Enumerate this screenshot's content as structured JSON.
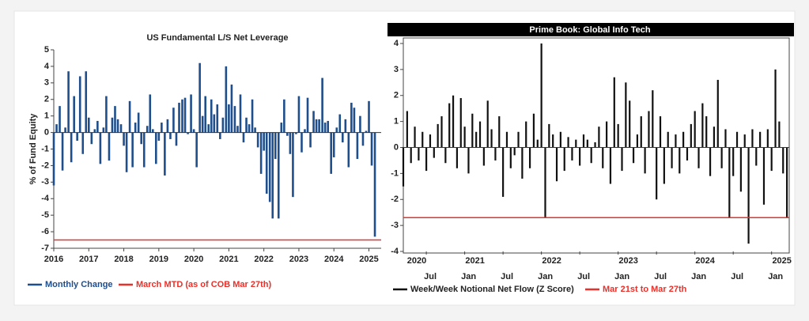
{
  "chart_data": [
    {
      "type": "bar",
      "title": "US Fundamental L/S Net Leverage",
      "ylabel": "% of Fund Equity",
      "x": [
        2016.0,
        2016.08,
        2016.17,
        2016.25,
        2016.33,
        2016.42,
        2016.5,
        2016.58,
        2016.67,
        2016.75,
        2016.83,
        2016.92,
        2017.0,
        2017.08,
        2017.17,
        2017.25,
        2017.33,
        2017.42,
        2017.5,
        2017.58,
        2017.67,
        2017.75,
        2017.83,
        2017.92,
        2018.0,
        2018.08,
        2018.17,
        2018.25,
        2018.33,
        2018.42,
        2018.5,
        2018.58,
        2018.67,
        2018.75,
        2018.83,
        2018.92,
        2019.0,
        2019.08,
        2019.17,
        2019.25,
        2019.33,
        2019.42,
        2019.5,
        2019.58,
        2019.67,
        2019.75,
        2019.83,
        2019.92,
        2020.0,
        2020.08,
        2020.17,
        2020.25,
        2020.33,
        2020.42,
        2020.5,
        2020.58,
        2020.67,
        2020.75,
        2020.83,
        2020.92,
        2021.0,
        2021.08,
        2021.17,
        2021.25,
        2021.33,
        2021.42,
        2021.5,
        2021.58,
        2021.67,
        2021.75,
        2021.83,
        2021.92,
        2022.0,
        2022.08,
        2022.17,
        2022.25,
        2022.33,
        2022.42,
        2022.5,
        2022.58,
        2022.67,
        2022.75,
        2022.83,
        2022.92,
        2023.0,
        2023.08,
        2023.17,
        2023.25,
        2023.33,
        2023.42,
        2023.5,
        2023.58,
        2023.67,
        2023.75,
        2023.83,
        2023.92,
        2024.0,
        2024.08,
        2024.17,
        2024.25,
        2024.33,
        2024.42,
        2024.5,
        2024.58,
        2024.67,
        2024.75,
        2024.83,
        2024.92,
        2025.0,
        2025.08,
        2025.17
      ],
      "series": [
        {
          "name": "Monthly Change",
          "color": "#1f4e8c",
          "values": [
            -3.2,
            0.5,
            1.6,
            -2.3,
            0.3,
            3.7,
            -1.8,
            2.2,
            -0.5,
            3.4,
            -1.3,
            3.7,
            0.9,
            -0.7,
            0.2,
            0.7,
            -1.9,
            0.3,
            2.2,
            -1.7,
            0.9,
            1.6,
            0.8,
            0.5,
            -0.8,
            -2.4,
            1.9,
            -2.1,
            0.6,
            1.2,
            -0.7,
            -2.1,
            0.4,
            2.3,
            0.2,
            -1.9,
            -0.5,
            0.6,
            -2.6,
            0.8,
            -0.4,
            1.5,
            -0.8,
            1.8,
            2.0,
            2.1,
            -0.1,
            2.3,
            0.2,
            -2.1,
            4.2,
            1.0,
            2.2,
            0.5,
            2.0,
            1.1,
            1.7,
            -0.4,
            0.9,
            4.0,
            1.7,
            2.9,
            1.6,
            0.4,
            2.3,
            -0.6,
            0.9,
            0.5,
            2.0,
            0.3,
            -0.9,
            -2.5,
            -1.1,
            -3.7,
            -4.2,
            -5.2,
            -1.6,
            -5.2,
            0.6,
            2.0,
            -0.2,
            -1.3,
            -3.9,
            -0.1,
            2.2,
            -1.2,
            0.2,
            2.1,
            -0.9,
            1.3,
            0.8,
            0.8,
            3.3,
            0.6,
            0.7,
            -2.5,
            -1.5,
            0.3,
            1.1,
            -0.6,
            0.8,
            -2.1,
            1.8,
            1.5,
            -1.6,
            1.0,
            -0.8,
            0.1,
            1.9,
            -2.0,
            -6.3
          ]
        }
      ],
      "reference_line": {
        "name": "March MTD (as of COB Mar 27th)",
        "color": "#e8312a",
        "value": -6.5
      },
      "xlim": [
        2016,
        2025.35
      ],
      "xticks": [
        2016,
        2017,
        2018,
        2019,
        2020,
        2021,
        2022,
        2023,
        2024,
        2025
      ],
      "ylim": [
        -7,
        5
      ],
      "yticks": [
        -7,
        -6,
        -5,
        -4,
        -3,
        -2,
        -1,
        0,
        1,
        2,
        3,
        4,
        5
      ],
      "legend": "bottom"
    },
    {
      "type": "bar",
      "title": "Prime Book: Global Info Tech",
      "x": [
        2020.2,
        2020.25,
        2020.3,
        2020.35,
        2020.4,
        2020.45,
        2020.5,
        2020.55,
        2020.6,
        2020.65,
        2020.7,
        2020.75,
        2020.8,
        2020.85,
        2020.9,
        2020.95,
        2021.0,
        2021.05,
        2021.1,
        2021.15,
        2021.2,
        2021.25,
        2021.3,
        2021.35,
        2021.4,
        2021.45,
        2021.5,
        2021.55,
        2021.6,
        2021.65,
        2021.7,
        2021.75,
        2021.8,
        2021.85,
        2021.9,
        2021.95,
        2022.0,
        2022.05,
        2022.1,
        2022.15,
        2022.2,
        2022.25,
        2022.3,
        2022.35,
        2022.4,
        2022.45,
        2022.5,
        2022.55,
        2022.6,
        2022.65,
        2022.7,
        2022.75,
        2022.8,
        2022.85,
        2022.9,
        2022.95,
        2023.0,
        2023.05,
        2023.1,
        2023.15,
        2023.2,
        2023.25,
        2023.3,
        2023.35,
        2023.4,
        2023.45,
        2023.5,
        2023.55,
        2023.6,
        2023.65,
        2023.7,
        2023.75,
        2023.8,
        2023.85,
        2023.9,
        2023.95,
        2024.0,
        2024.05,
        2024.1,
        2024.15,
        2024.2,
        2024.25,
        2024.3,
        2024.35,
        2024.4,
        2024.45,
        2024.5,
        2024.55,
        2024.6,
        2024.65,
        2024.7,
        2024.75,
        2024.8,
        2024.85,
        2024.9,
        2024.95,
        2025.0,
        2025.05,
        2025.1,
        2025.15,
        2025.2
      ],
      "series": [
        {
          "name": "Week/Week Notional Net Flow (Z Score)",
          "color": "#111111",
          "values": [
            -1.5,
            1.4,
            -0.6,
            0.8,
            -0.5,
            0.6,
            -0.9,
            0.5,
            -0.4,
            0.9,
            1.2,
            -0.6,
            1.7,
            2.0,
            -0.8,
            1.9,
            0.8,
            -1.0,
            1.3,
            0.6,
            1.0,
            -0.7,
            1.8,
            0.7,
            -0.5,
            1.2,
            -1.9,
            0.6,
            -0.8,
            -0.3,
            0.6,
            -1.2,
            1.0,
            -0.8,
            1.3,
            0.3,
            4.0,
            -2.7,
            0.9,
            0.5,
            -1.3,
            0.6,
            -0.9,
            0.4,
            -0.5,
            0.3,
            -0.7,
            0.5,
            0.3,
            -0.6,
            0.2,
            0.8,
            -0.8,
            1.0,
            -1.4,
            2.7,
            0.9,
            -0.9,
            2.5,
            1.8,
            -0.6,
            0.5,
            1.2,
            -1.0,
            1.4,
            2.2,
            -2.0,
            1.2,
            -1.4,
            0.6,
            -0.8,
            0.5,
            -1.0,
            0.6,
            -0.5,
            0.9,
            1.4,
            -0.8,
            1.7,
            1.2,
            -1.1,
            0.8,
            2.6,
            -0.8,
            0.7,
            -2.7,
            -1.1,
            0.6,
            -1.7,
            0.5,
            -3.7,
            0.7,
            -0.7,
            0.6,
            -2.2,
            0.7,
            -0.9,
            3.0,
            1.0,
            -1.0,
            -2.7
          ]
        }
      ],
      "reference_line": {
        "name": "Mar 21st to Mar 27th",
        "color": "#e8312a",
        "value": -2.7
      },
      "xlim": [
        2020.2,
        2025.23
      ],
      "xticks": [
        {
          "value": 2020.5,
          "label": "Jul"
        },
        {
          "value": 2021,
          "label": "Jan"
        },
        {
          "value": 2021.5,
          "label": "Jul"
        },
        {
          "value": 2022,
          "label": "Jan"
        },
        {
          "value": 2022.5,
          "label": "Jul"
        },
        {
          "value": 2023,
          "label": "Jan"
        },
        {
          "value": 2023.5,
          "label": "Jul"
        },
        {
          "value": 2024,
          "label": "Jan"
        },
        {
          "value": 2024.5,
          "label": "Jul"
        },
        {
          "value": 2025,
          "label": "Jan"
        }
      ],
      "x_year_ticks": [
        2020,
        2021,
        2022,
        2023,
        2024,
        2025
      ],
      "ylim": [
        -4,
        4
      ],
      "yticks": [
        -4,
        -3,
        -2,
        -1,
        0,
        1,
        2,
        3,
        4
      ],
      "legend": "bottom"
    }
  ]
}
